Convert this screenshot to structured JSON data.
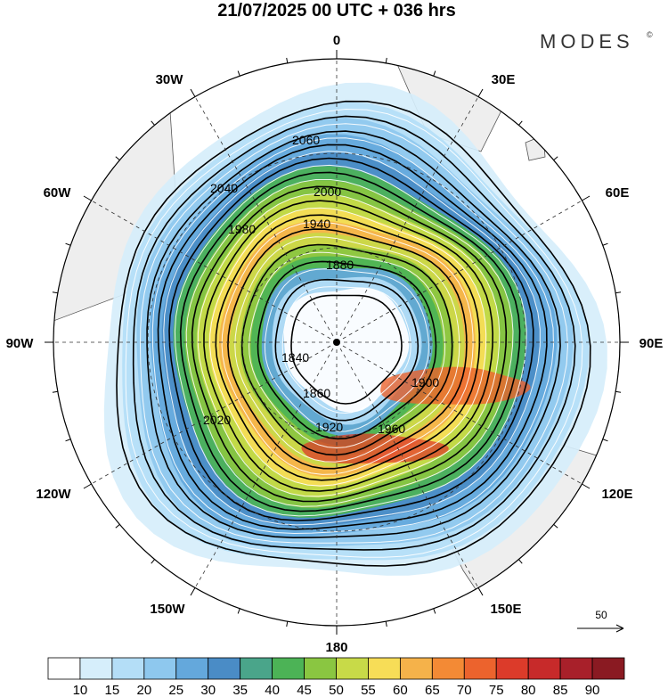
{
  "header": {
    "title": "21/07/2025  00 UTC  + 036 hrs",
    "brand": "MODES",
    "brand_mark": "©"
  },
  "map": {
    "projection": "south-polar-stereographic",
    "longitude_labels": [
      "0",
      "30E",
      "60E",
      "90E",
      "120E",
      "150E",
      "180",
      "150W",
      "120W",
      "90W",
      "60W",
      "30W"
    ],
    "contour_labels": [
      "2060",
      "2040",
      "2020",
      "2000",
      "1980",
      "1960",
      "1940",
      "1920",
      "1900",
      "1880",
      "1860",
      "1840"
    ],
    "reference_vector_label": "50",
    "land_color": "#eeeeee",
    "coast_color": "#555555"
  },
  "colorbar": {
    "ticks": [
      "10",
      "15",
      "20",
      "25",
      "30",
      "35",
      "40",
      "45",
      "50",
      "55",
      "60",
      "65",
      "70",
      "75",
      "80",
      "85",
      "90"
    ],
    "colors": [
      "#ffffff",
      "#d6eefb",
      "#b4def7",
      "#8ec8ee",
      "#64a8dc",
      "#4a8cc6",
      "#4aa58a",
      "#4cb356",
      "#8ac641",
      "#c8da48",
      "#f7dd57",
      "#f5b24a",
      "#f38a35",
      "#ec632d",
      "#dc3b2a",
      "#c72a2a",
      "#a8202a",
      "#8a1a22"
    ]
  }
}
